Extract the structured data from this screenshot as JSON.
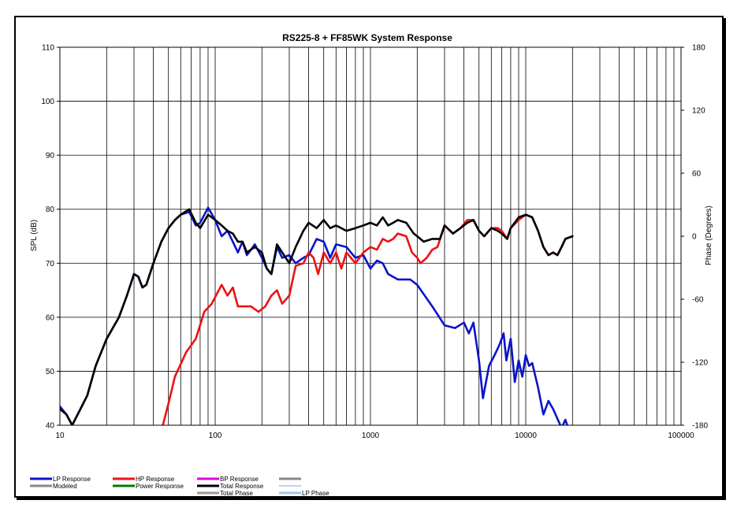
{
  "chart_data": {
    "type": "line",
    "title": "RS225-8 + FF85WK    System Response",
    "xlabel": "",
    "ylabel": "SPL (dB)",
    "y2label": "Phase (Degrees)",
    "x_scale": "log",
    "xlim": [
      10,
      100000
    ],
    "ylim": [
      40,
      110
    ],
    "y2lim": [
      -180,
      180
    ],
    "x_ticks": [
      "10",
      "100",
      "1000",
      "10000",
      "100000"
    ],
    "y_ticks": [
      "40",
      "50",
      "60",
      "70",
      "80",
      "90",
      "100",
      "110"
    ],
    "y2_ticks": [
      "-180",
      "-120",
      "-60",
      "0",
      "60",
      "120",
      "180"
    ],
    "grid": true,
    "legend_position": "bottom",
    "colors": {
      "lp": "#0a14c8",
      "hp": "#ee1111",
      "bp": "#e000e0",
      "total": "#000000",
      "modeled": "#888888",
      "power": "#007a00",
      "total_phase": "#999999",
      "lp_phase": "#9fc8ee"
    },
    "legend": [
      {
        "label": "LP Response",
        "color": "#0a14c8"
      },
      {
        "label": "Modeled",
        "color": "#888888"
      },
      {
        "label": "HP Response",
        "color": "#ee1111"
      },
      {
        "label": "Power Response",
        "color": "#007a00"
      },
      {
        "label": "BP Response",
        "color": "#e000e0"
      },
      {
        "label": "Total Response",
        "color": "#000000"
      },
      {
        "label": "Total Phase",
        "color": "#999999"
      },
      {
        "label": "LP Phase",
        "color": "#9fc8ee"
      }
    ],
    "series": [
      {
        "name": "LP Response",
        "color": "#0a14c8",
        "points": [
          [
            10,
            43.5
          ],
          [
            11,
            42
          ],
          [
            12,
            40
          ],
          [
            15,
            45.5
          ],
          [
            17,
            51
          ],
          [
            20,
            56
          ],
          [
            24,
            60
          ],
          [
            27,
            64
          ],
          [
            30,
            68
          ],
          [
            32,
            67.5
          ],
          [
            34,
            65.5
          ],
          [
            36,
            66
          ],
          [
            40,
            70
          ],
          [
            45,
            74
          ],
          [
            50,
            76.5
          ],
          [
            55,
            78
          ],
          [
            60,
            79
          ],
          [
            68,
            79.5
          ],
          [
            75,
            77
          ],
          [
            80,
            77.5
          ],
          [
            90,
            80.3
          ],
          [
            100,
            78
          ],
          [
            110,
            75
          ],
          [
            120,
            76
          ],
          [
            130,
            74
          ],
          [
            140,
            72
          ],
          [
            150,
            74
          ],
          [
            160,
            71.5
          ],
          [
            170,
            72.5
          ],
          [
            180,
            73.5
          ],
          [
            200,
            71
          ],
          [
            215,
            69
          ],
          [
            230,
            68
          ],
          [
            250,
            73
          ],
          [
            270,
            71
          ],
          [
            300,
            71.5
          ],
          [
            330,
            70
          ],
          [
            370,
            71
          ],
          [
            400,
            71.5
          ],
          [
            450,
            74.5
          ],
          [
            500,
            74
          ],
          [
            550,
            71
          ],
          [
            600,
            73.5
          ],
          [
            700,
            73
          ],
          [
            800,
            71
          ],
          [
            900,
            71.5
          ],
          [
            1000,
            69
          ],
          [
            1100,
            70.5
          ],
          [
            1200,
            70
          ],
          [
            1300,
            68
          ],
          [
            1500,
            67
          ],
          [
            1800,
            67
          ],
          [
            2000,
            66
          ],
          [
            2500,
            62
          ],
          [
            3000,
            58.5
          ],
          [
            3500,
            58
          ],
          [
            4000,
            59
          ],
          [
            4300,
            57
          ],
          [
            4600,
            59
          ],
          [
            5000,
            52
          ],
          [
            5300,
            45
          ],
          [
            5800,
            51
          ],
          [
            6300,
            53
          ],
          [
            6800,
            55
          ],
          [
            7200,
            57
          ],
          [
            7500,
            52
          ],
          [
            8000,
            56
          ],
          [
            8500,
            48
          ],
          [
            9000,
            52
          ],
          [
            9500,
            49
          ],
          [
            10000,
            53
          ],
          [
            10500,
            51
          ],
          [
            11000,
            51.5
          ],
          [
            12000,
            47
          ],
          [
            13000,
            42
          ],
          [
            14000,
            44.5
          ],
          [
            15000,
            43
          ],
          [
            17000,
            39.5
          ],
          [
            18000,
            41
          ],
          [
            19000,
            39
          ]
        ]
      },
      {
        "name": "HP Response",
        "color": "#ee1111",
        "points": [
          [
            46,
            40
          ],
          [
            50,
            44
          ],
          [
            55,
            49
          ],
          [
            65,
            53.5
          ],
          [
            75,
            56
          ],
          [
            85,
            61
          ],
          [
            95,
            62.5
          ],
          [
            110,
            66
          ],
          [
            120,
            64
          ],
          [
            130,
            65.5
          ],
          [
            140,
            62
          ],
          [
            150,
            62
          ],
          [
            170,
            62
          ],
          [
            190,
            61
          ],
          [
            210,
            62
          ],
          [
            230,
            64
          ],
          [
            250,
            65
          ],
          [
            270,
            62.5
          ],
          [
            300,
            64
          ],
          [
            330,
            69.5
          ],
          [
            370,
            70
          ],
          [
            400,
            72
          ],
          [
            430,
            71
          ],
          [
            460,
            68
          ],
          [
            500,
            72
          ],
          [
            550,
            70
          ],
          [
            600,
            72
          ],
          [
            650,
            69
          ],
          [
            700,
            72
          ],
          [
            800,
            70
          ],
          [
            900,
            72
          ],
          [
            1000,
            73
          ],
          [
            1100,
            72.5
          ],
          [
            1200,
            74.5
          ],
          [
            1300,
            74
          ],
          [
            1400,
            74.5
          ],
          [
            1500,
            75.5
          ],
          [
            1700,
            75
          ],
          [
            1850,
            72
          ],
          [
            2000,
            71
          ],
          [
            2100,
            70
          ],
          [
            2300,
            71
          ],
          [
            2500,
            72.5
          ],
          [
            2700,
            73
          ],
          [
            3000,
            77
          ],
          [
            3400,
            75.5
          ],
          [
            3800,
            76.5
          ],
          [
            4200,
            78
          ],
          [
            4600,
            78
          ],
          [
            5000,
            76
          ],
          [
            5400,
            75
          ],
          [
            6000,
            76.5
          ],
          [
            6600,
            76.5
          ],
          [
            7000,
            76
          ],
          [
            7600,
            74.5
          ],
          [
            8000,
            76.5
          ],
          [
            9000,
            78
          ],
          [
            10000,
            79
          ],
          [
            11000,
            78.5
          ],
          [
            12000,
            76
          ],
          [
            13000,
            73
          ],
          [
            14000,
            71.5
          ],
          [
            15000,
            72
          ],
          [
            16000,
            71.5
          ],
          [
            17000,
            73
          ],
          [
            18000,
            74.5
          ],
          [
            20000,
            75
          ]
        ]
      },
      {
        "name": "Total Response",
        "color": "#000000",
        "points": [
          [
            10,
            43
          ],
          [
            11,
            42
          ],
          [
            12,
            40
          ],
          [
            15,
            45.5
          ],
          [
            17,
            51
          ],
          [
            20,
            56
          ],
          [
            24,
            60
          ],
          [
            27,
            64
          ],
          [
            30,
            68
          ],
          [
            32,
            67.5
          ],
          [
            34,
            65.5
          ],
          [
            36,
            66
          ],
          [
            40,
            70
          ],
          [
            45,
            74
          ],
          [
            50,
            76.5
          ],
          [
            55,
            78
          ],
          [
            60,
            79
          ],
          [
            68,
            80
          ],
          [
            75,
            77.5
          ],
          [
            80,
            76.5
          ],
          [
            90,
            79
          ],
          [
            100,
            78
          ],
          [
            110,
            77
          ],
          [
            120,
            76
          ],
          [
            130,
            75.5
          ],
          [
            140,
            74
          ],
          [
            150,
            74
          ],
          [
            160,
            72
          ],
          [
            180,
            73
          ],
          [
            200,
            72
          ],
          [
            215,
            69
          ],
          [
            230,
            68
          ],
          [
            250,
            73.5
          ],
          [
            270,
            72
          ],
          [
            300,
            70
          ],
          [
            330,
            73
          ],
          [
            370,
            76
          ],
          [
            400,
            77.5
          ],
          [
            450,
            76.5
          ],
          [
            500,
            78
          ],
          [
            550,
            76.5
          ],
          [
            600,
            77
          ],
          [
            700,
            76
          ],
          [
            800,
            76.5
          ],
          [
            900,
            77
          ],
          [
            1000,
            77.5
          ],
          [
            1100,
            77
          ],
          [
            1200,
            78.5
          ],
          [
            1300,
            77
          ],
          [
            1400,
            77.5
          ],
          [
            1500,
            78
          ],
          [
            1700,
            77.5
          ],
          [
            1900,
            75.5
          ],
          [
            2000,
            75
          ],
          [
            2200,
            74
          ],
          [
            2500,
            74.5
          ],
          [
            2800,
            74.5
          ],
          [
            3000,
            77
          ],
          [
            3400,
            75.5
          ],
          [
            3800,
            76.5
          ],
          [
            4200,
            77.5
          ],
          [
            4600,
            78
          ],
          [
            5000,
            76
          ],
          [
            5400,
            75
          ],
          [
            6000,
            76.5
          ],
          [
            6600,
            76
          ],
          [
            7000,
            75.5
          ],
          [
            7600,
            74.5
          ],
          [
            8000,
            76.5
          ],
          [
            9000,
            78.5
          ],
          [
            10000,
            79
          ],
          [
            11000,
            78.5
          ],
          [
            12000,
            76
          ],
          [
            13000,
            73
          ],
          [
            14000,
            71.5
          ],
          [
            15000,
            72
          ],
          [
            16000,
            71.5
          ],
          [
            17000,
            73
          ],
          [
            18000,
            74.5
          ],
          [
            20000,
            75
          ]
        ]
      }
    ]
  }
}
